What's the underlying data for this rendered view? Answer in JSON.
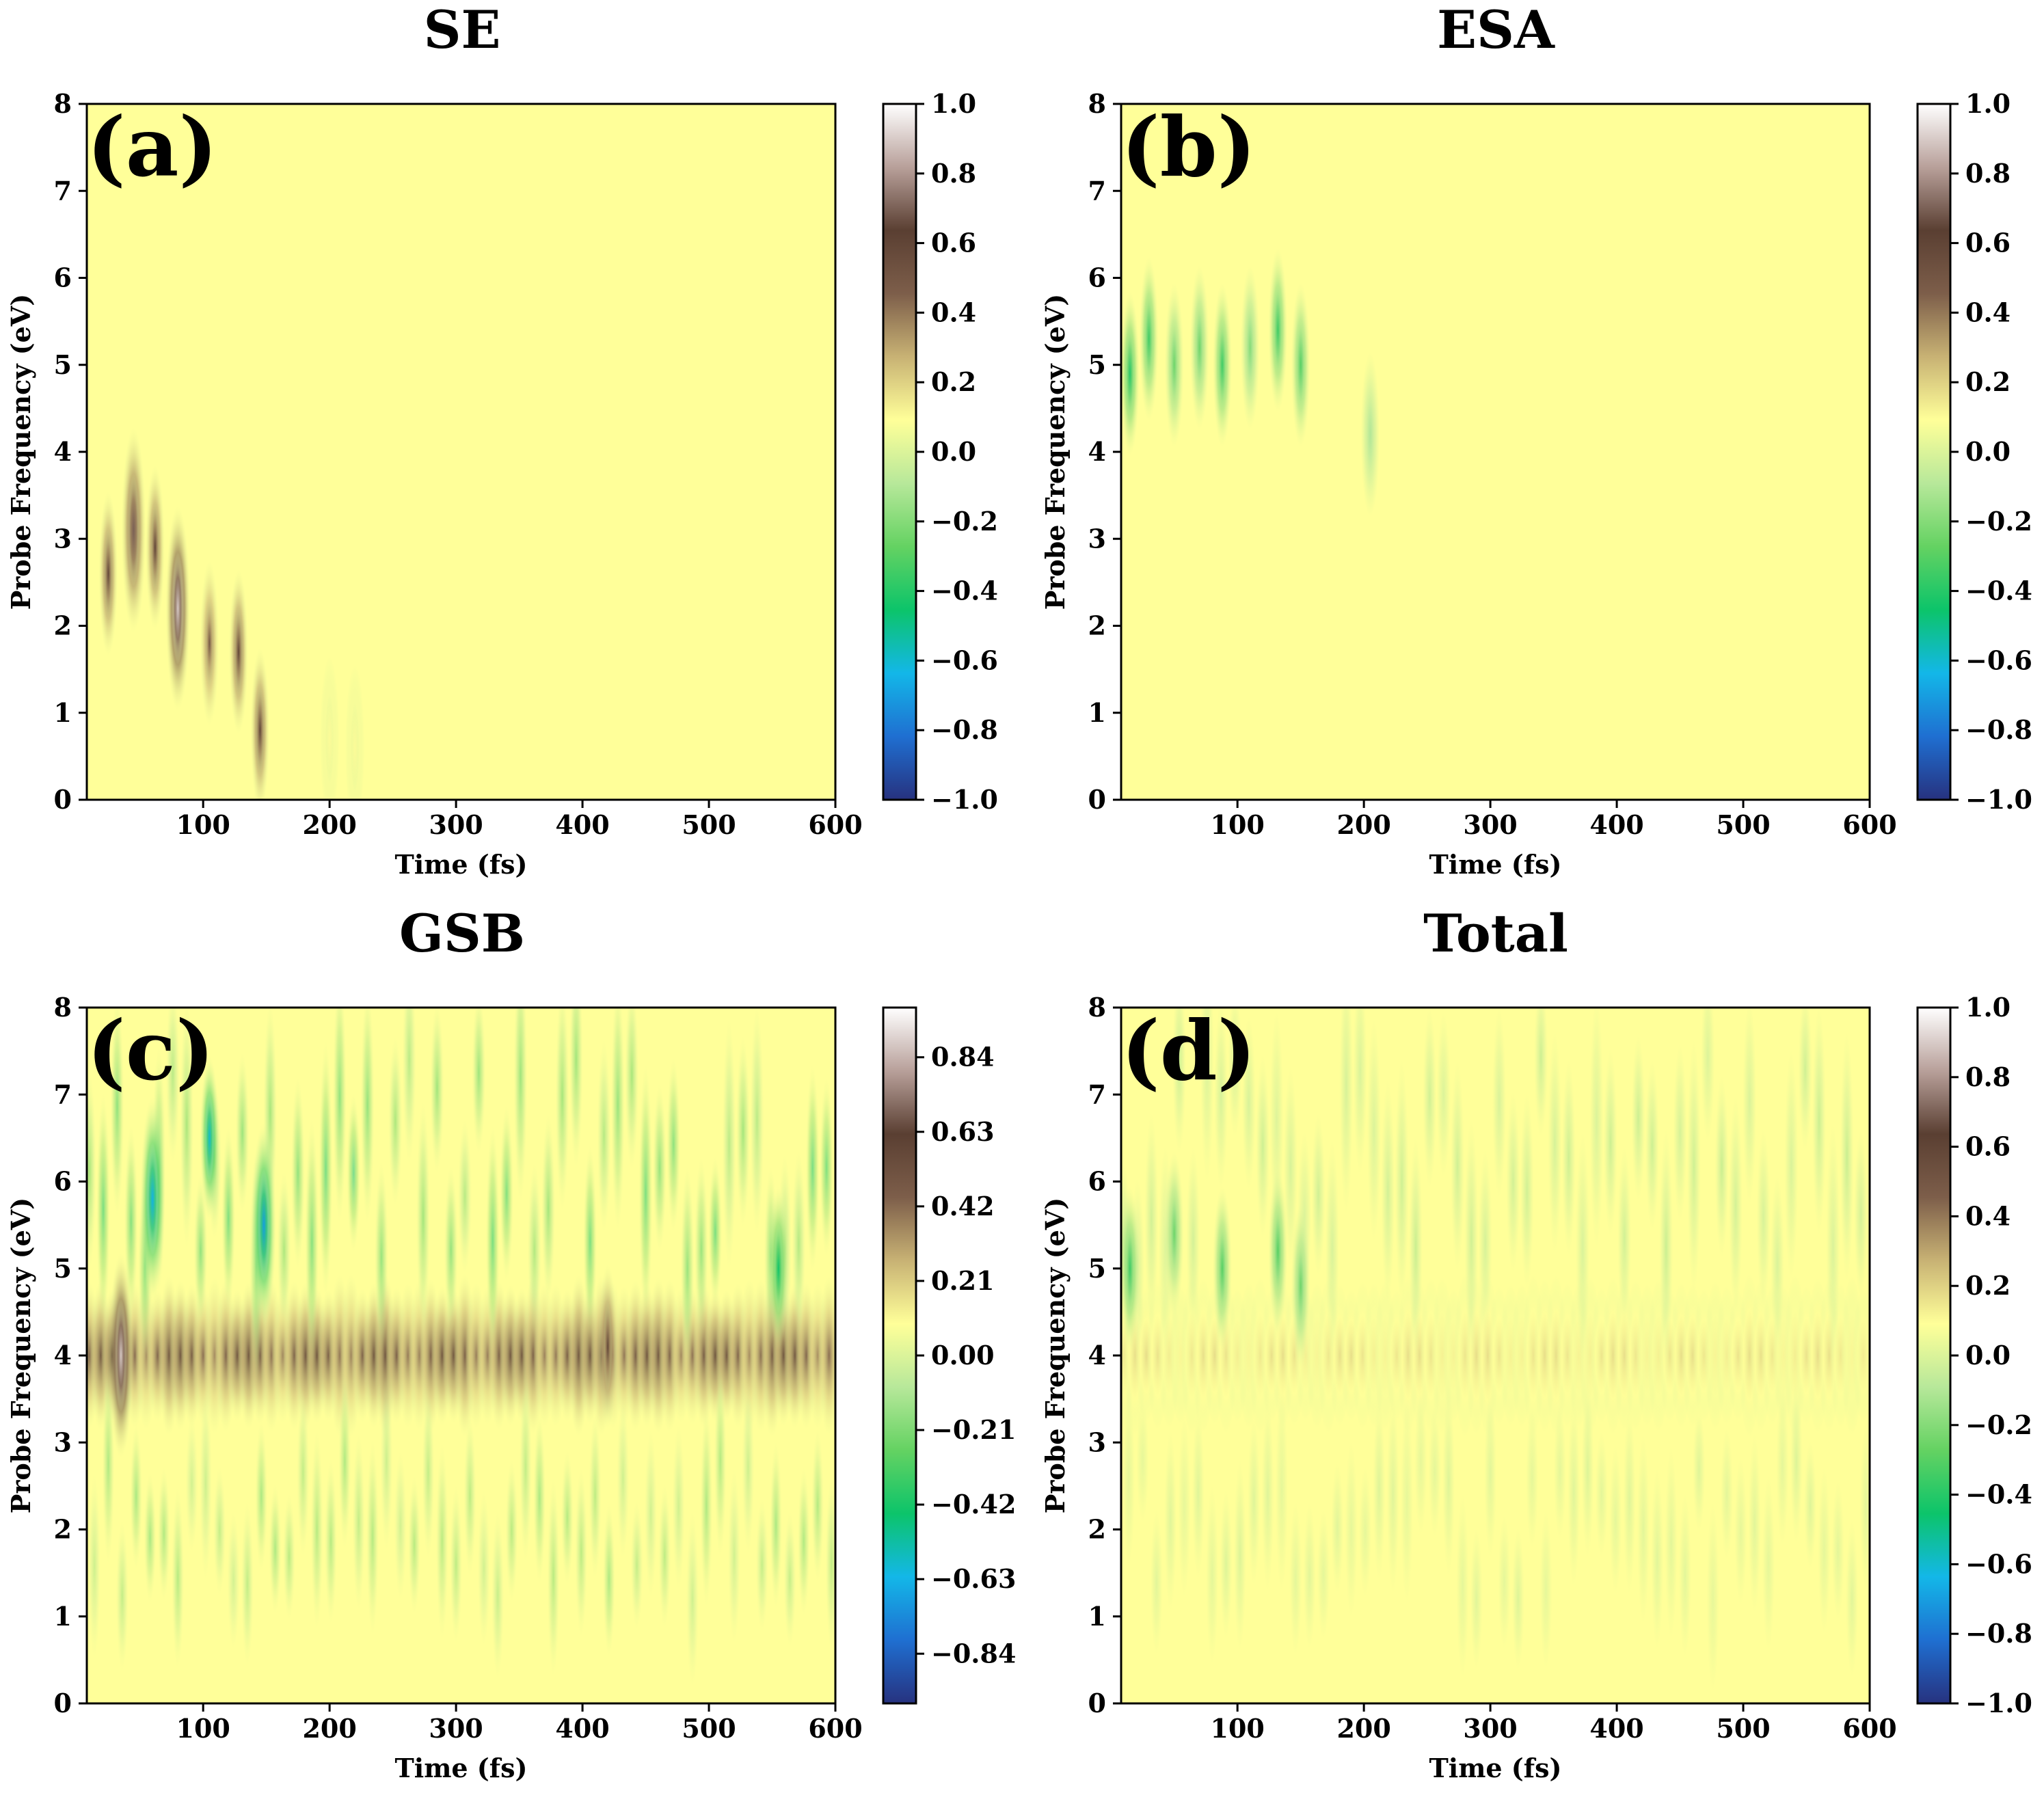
{
  "colors": {
    "colormap": [
      "#27327f",
      "#1f6fd1",
      "#13b7e8",
      "#0cc46a",
      "#64d262",
      "#b7e89a",
      "#ffff99",
      "#c8b274",
      "#7d5e4a",
      "#5a3f32",
      "#b8a09a",
      "#ffffff"
    ],
    "background": "#ffff99"
  },
  "chart_data": [
    {
      "id": "a",
      "type": "heatmap",
      "title": "SE",
      "panel_label": "(a)",
      "xlabel": "Time (fs)",
      "ylabel": "Probe Frequency (eV)",
      "xlim": [
        8,
        600
      ],
      "ylim": [
        0,
        8
      ],
      "xticks": [
        100,
        200,
        300,
        400,
        500,
        600
      ],
      "yticks": [
        0,
        1,
        2,
        3,
        4,
        5,
        6,
        7,
        8
      ],
      "colorbar": {
        "min": -1.0,
        "max": 1.0,
        "ticks": [
          "1.0",
          "0.8",
          "0.6",
          "0.4",
          "0.2",
          "0.0",
          "−0.2",
          "−0.4",
          "−0.6",
          "−0.8",
          "−1.0"
        ]
      },
      "features": [
        {
          "t": 25,
          "e": 2.6,
          "v": 0.6
        },
        {
          "t": 45,
          "e": 3.1,
          "v": 0.7
        },
        {
          "t": 62,
          "e": 2.9,
          "v": 0.6
        },
        {
          "t": 80,
          "e": 2.2,
          "v": 0.9
        },
        {
          "t": 105,
          "e": 1.8,
          "v": 0.5
        },
        {
          "t": 128,
          "e": 1.7,
          "v": 0.6
        },
        {
          "t": 145,
          "e": 0.8,
          "v": 0.6
        },
        {
          "t": 200,
          "e": 0.7,
          "v": 0.1
        },
        {
          "t": 220,
          "e": 0.6,
          "v": 0.1
        }
      ]
    },
    {
      "id": "b",
      "type": "heatmap",
      "title": "ESA",
      "panel_label": "(b)",
      "xlabel": "Time (fs)",
      "ylabel": "Probe Frequency (eV)",
      "xlim": [
        8,
        600
      ],
      "ylim": [
        0,
        8
      ],
      "xticks": [
        100,
        200,
        300,
        400,
        500,
        600
      ],
      "yticks": [
        0,
        1,
        2,
        3,
        4,
        5,
        6,
        7,
        8
      ],
      "colorbar": {
        "min": -1.0,
        "max": 1.0,
        "ticks": [
          "1.0",
          "0.8",
          "0.6",
          "0.4",
          "0.2",
          "0.0",
          "−0.2",
          "−0.4",
          "−0.6",
          "−0.8",
          "−1.0"
        ]
      },
      "features": [
        {
          "t": 15,
          "e": 4.9,
          "v": -0.4
        },
        {
          "t": 30,
          "e": 5.3,
          "v": -0.35
        },
        {
          "t": 50,
          "e": 5.0,
          "v": -0.25
        },
        {
          "t": 70,
          "e": 5.2,
          "v": -0.25
        },
        {
          "t": 88,
          "e": 5.0,
          "v": -0.35
        },
        {
          "t": 110,
          "e": 5.2,
          "v": -0.2
        },
        {
          "t": 132,
          "e": 5.4,
          "v": -0.35
        },
        {
          "t": 150,
          "e": 5.0,
          "v": -0.3
        },
        {
          "t": 205,
          "e": 4.2,
          "v": -0.1
        }
      ]
    },
    {
      "id": "c",
      "type": "heatmap",
      "title": "GSB",
      "panel_label": "(c)",
      "xlabel": "Time (fs)",
      "ylabel": "Probe Frequency (eV)",
      "xlim": [
        8,
        600
      ],
      "ylim": [
        0,
        8
      ],
      "xticks": [
        100,
        200,
        300,
        400,
        500,
        600
      ],
      "yticks": [
        0,
        1,
        2,
        3,
        4,
        5,
        6,
        7,
        8
      ],
      "colorbar": {
        "min": -0.98,
        "max": 0.98,
        "ticks": [
          "0.84",
          "0.63",
          "0.42",
          "0.21",
          "0.00",
          "−0.21",
          "−0.42",
          "−0.63",
          "−0.84"
        ]
      },
      "band": {
        "center_eV": 4.0,
        "amplitude": 0.5
      },
      "features": [
        {
          "t": 35,
          "e": 4.0,
          "v": 0.9
        },
        {
          "t": 60,
          "e": 5.8,
          "v": -0.65
        },
        {
          "t": 105,
          "e": 6.5,
          "v": -0.6
        },
        {
          "t": 148,
          "e": 5.5,
          "v": -0.7
        },
        {
          "t": 420,
          "e": 4.1,
          "v": 0.6
        },
        {
          "t": 555,
          "e": 5.0,
          "v": -0.45
        }
      ]
    },
    {
      "id": "d",
      "type": "heatmap",
      "title": "Total",
      "panel_label": "(d)",
      "xlabel": "Time (fs)",
      "ylabel": "Probe Frequency (eV)",
      "xlim": [
        8,
        600
      ],
      "ylim": [
        0,
        8
      ],
      "xticks": [
        100,
        200,
        300,
        400,
        500,
        600
      ],
      "yticks": [
        0,
        1,
        2,
        3,
        4,
        5,
        6,
        7,
        8
      ],
      "colorbar": {
        "min": -1.0,
        "max": 1.0,
        "ticks": [
          "1.0",
          "0.8",
          "0.6",
          "0.4",
          "0.2",
          "0.0",
          "−0.2",
          "−0.4",
          "−0.6",
          "−0.8",
          "−1.0"
        ]
      },
      "band": {
        "center_eV": 4.0,
        "amplitude": 0.15
      },
      "features": [
        {
          "t": 15,
          "e": 5.0,
          "v": -0.35
        },
        {
          "t": 50,
          "e": 5.4,
          "v": -0.25
        },
        {
          "t": 88,
          "e": 5.0,
          "v": -0.3
        },
        {
          "t": 132,
          "e": 5.2,
          "v": -0.3
        },
        {
          "t": 150,
          "e": 4.8,
          "v": -0.25
        }
      ]
    }
  ]
}
